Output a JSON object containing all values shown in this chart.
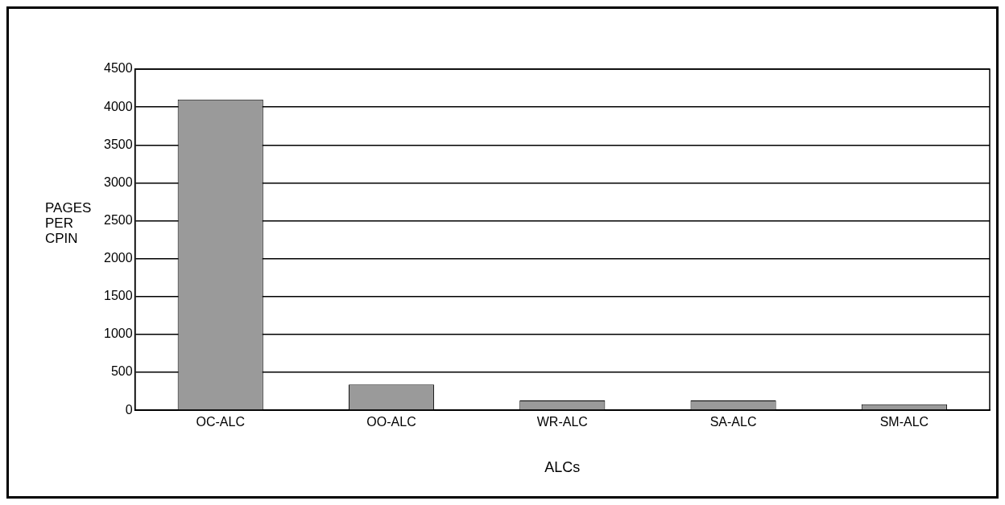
{
  "chart_data": {
    "type": "bar",
    "xlabel": "ALCs",
    "ylabel": "PAGES PER CPIN",
    "categories": [
      "OC-ALC",
      "OO-ALC",
      "WR-ALC",
      "SA-ALC",
      "SM-ALC"
    ],
    "values": [
      4100,
      340,
      130,
      130,
      80
    ],
    "color": "#9a9a9a",
    "ylim": [
      0,
      4500
    ],
    "yticks": [
      0,
      500,
      1000,
      1500,
      2000,
      2500,
      3000,
      3500,
      4000,
      4500
    ],
    "grid": "y"
  }
}
